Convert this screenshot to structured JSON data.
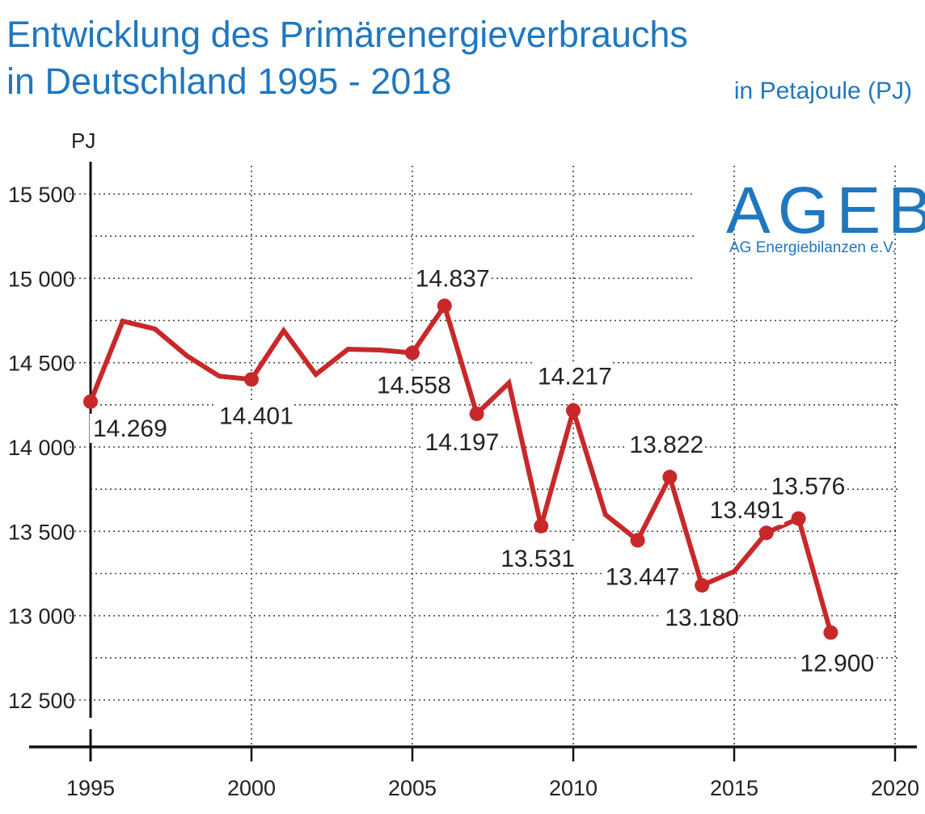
{
  "title_line1": "Entwicklung des Primärenergieverbrauchs",
  "title_line2": "in Deutschland 1995 - 2018",
  "subtitle": "in Petajoule (PJ)",
  "logo": {
    "main": "AGEB",
    "sub": "AG Energiebilanzen e.V."
  },
  "colors": {
    "title": "#1f77c0",
    "line": "#c8282a",
    "axis": "#111111",
    "grid": "#444444"
  },
  "chart_data": {
    "type": "line",
    "ylabel": "PJ",
    "ylim": [
      12200,
      15700
    ],
    "xlim": [
      1995,
      2020
    ],
    "yticks": [
      12500,
      13000,
      13500,
      14000,
      14500,
      15000,
      15500
    ],
    "ytick_labels": [
      "12 500",
      "13 000",
      "13 500",
      "14 000",
      "14 500",
      "15 000",
      "15 500"
    ],
    "xticks": [
      1995,
      2000,
      2005,
      2010,
      2015,
      2020
    ],
    "xtick_labels": [
      "1995",
      "2000",
      "2005",
      "2010",
      "2015",
      "2020"
    ],
    "grid": true,
    "series": [
      {
        "x": [
          1995,
          1996,
          1997,
          1998,
          1999,
          2000,
          2001,
          2002,
          2003,
          2004,
          2005,
          2006,
          2007,
          2008,
          2009,
          2010,
          2011,
          2012,
          2013,
          2014,
          2015,
          2016,
          2017,
          2018
        ],
        "values": [
          14269,
          14746,
          14700,
          14540,
          14420,
          14401,
          14690,
          14430,
          14580,
          14575,
          14558,
          14837,
          14197,
          14380,
          13531,
          14217,
          13599,
          13447,
          13822,
          13180,
          13262,
          13491,
          13576,
          12900
        ]
      }
    ],
    "markers": [
      {
        "x": 1995,
        "y": 14269,
        "label": "14.269"
      },
      {
        "x": 2000,
        "y": 14401,
        "label": "14.401"
      },
      {
        "x": 2005,
        "y": 14558,
        "label": "14.558"
      },
      {
        "x": 2006,
        "y": 14837,
        "label": "14.837"
      },
      {
        "x": 2007,
        "y": 14197,
        "label": "14.197"
      },
      {
        "x": 2009,
        "y": 13531,
        "label": "13.531"
      },
      {
        "x": 2010,
        "y": 14217,
        "label": "14.217"
      },
      {
        "x": 2012,
        "y": 13447,
        "label": "13.447"
      },
      {
        "x": 2013,
        "y": 13822,
        "label": "13.822"
      },
      {
        "x": 2014,
        "y": 13180,
        "label": "13.180"
      },
      {
        "x": 2016,
        "y": 13491,
        "label": "13.491"
      },
      {
        "x": 2017,
        "y": 13576,
        "label": "13.576"
      },
      {
        "x": 2018,
        "y": 12900,
        "label": "12.900"
      }
    ]
  }
}
